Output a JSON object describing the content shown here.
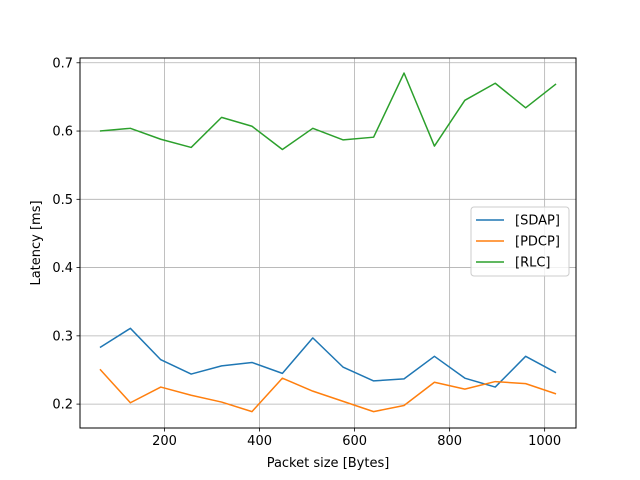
{
  "chart_data": {
    "type": "line",
    "xlabel": "Packet size [Bytes]",
    "ylabel": "Latency [ms]",
    "xlim": [
      22,
      1066
    ],
    "ylim": [
      0.165,
      0.707
    ],
    "xticks": [
      200,
      400,
      600,
      800,
      1000
    ],
    "yticks": [
      0.2,
      0.3,
      0.4,
      0.5,
      0.6,
      0.7
    ],
    "xtick_labels": [
      "200",
      "400",
      "600",
      "800",
      "1000"
    ],
    "ytick_labels": [
      "0.2",
      "0.3",
      "0.4",
      "0.5",
      "0.6",
      "0.7"
    ],
    "grid": true,
    "legend_position": "center-right",
    "x": [
      64,
      128,
      192,
      256,
      320,
      384,
      448,
      512,
      576,
      640,
      704,
      768,
      832,
      896,
      960,
      1024
    ],
    "series": [
      {
        "name": "[SDAP]",
        "color": "#1f77b4",
        "values": [
          0.283,
          0.311,
          0.265,
          0.244,
          0.256,
          0.261,
          0.245,
          0.297,
          0.254,
          0.234,
          0.237,
          0.27,
          0.238,
          0.225,
          0.27,
          0.246
        ]
      },
      {
        "name": "[PDCP]",
        "color": "#ff7f0e",
        "values": [
          0.251,
          0.202,
          0.225,
          0.213,
          0.203,
          0.189,
          0.238,
          0.219,
          0.204,
          0.189,
          0.198,
          0.232,
          0.222,
          0.233,
          0.23,
          0.215
        ]
      },
      {
        "name": "[RLC]",
        "color": "#2ca02c",
        "values": [
          0.6,
          0.604,
          0.588,
          0.576,
          0.62,
          0.607,
          0.573,
          0.604,
          0.587,
          0.591,
          0.685,
          0.578,
          0.645,
          0.67,
          0.634,
          0.669
        ]
      }
    ]
  }
}
